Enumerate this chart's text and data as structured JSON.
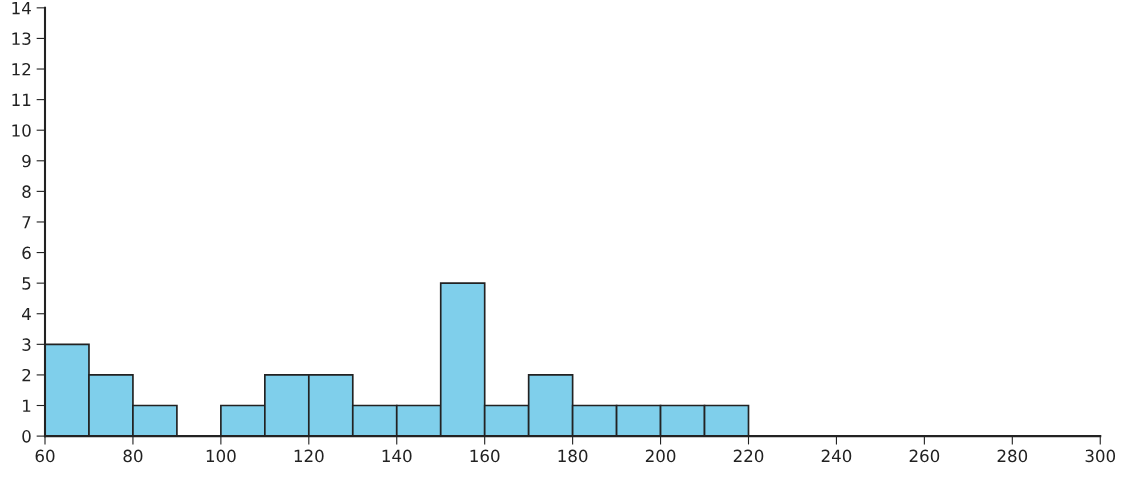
{
  "chart_data": {
    "type": "histogram",
    "bins": [
      60,
      70,
      80,
      90,
      100,
      110,
      120,
      130,
      140,
      150,
      160,
      170,
      180,
      190,
      200,
      210,
      220
    ],
    "values": [
      3,
      2,
      1,
      0,
      1,
      2,
      2,
      1,
      1,
      5,
      1,
      2,
      1,
      1,
      1,
      1
    ],
    "color": "#7fcfeb",
    "xlim": [
      60,
      300
    ],
    "xticks": [
      60,
      80,
      100,
      120,
      140,
      160,
      180,
      200,
      220,
      240,
      260,
      280,
      300
    ],
    "ylim": [
      0,
      14
    ],
    "yticks": [
      0,
      1,
      2,
      3,
      4,
      5,
      6,
      7,
      8,
      9,
      10,
      11,
      12,
      13,
      14
    ]
  }
}
